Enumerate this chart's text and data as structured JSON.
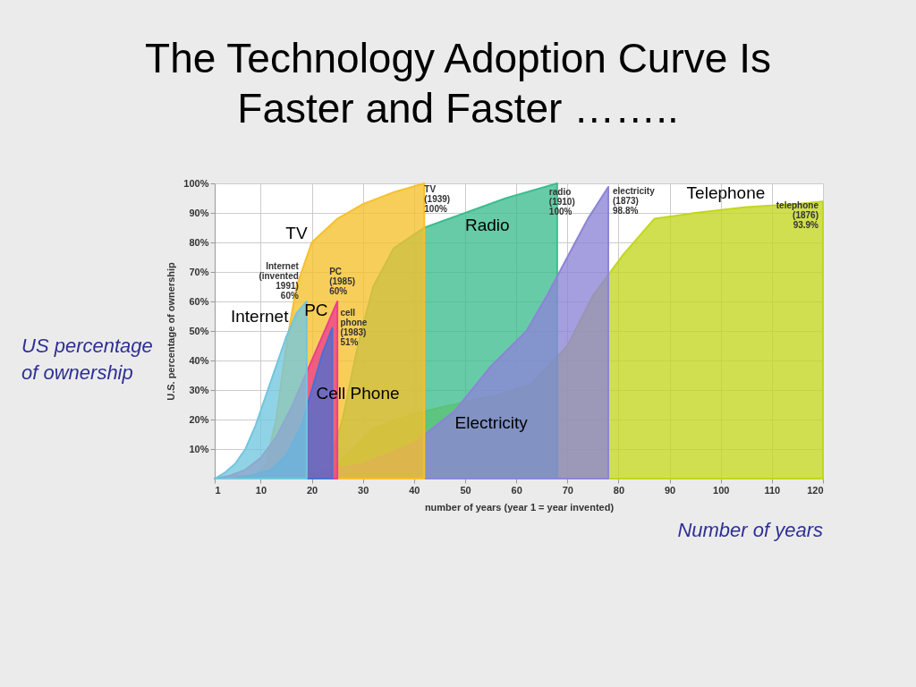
{
  "chart_data": {
    "type": "area",
    "title": "The Technology Adoption Curve Is Faster and Faster ……..",
    "xlabel": "number of years (year 1 = year invented)",
    "ylabel": "U.S. percentage of ownership",
    "xlim": [
      1,
      120
    ],
    "xticks": [
      1,
      10,
      20,
      30,
      40,
      50,
      60,
      70,
      80,
      90,
      100,
      110,
      120
    ],
    "ylim": [
      0,
      100
    ],
    "yticks": [
      {
        "value": 10,
        "label": "10%"
      },
      {
        "value": 20,
        "label": "20%"
      },
      {
        "value": 30,
        "label": "30%"
      },
      {
        "value": 40,
        "label": "40%"
      },
      {
        "value": 50,
        "label": "50%"
      },
      {
        "value": 60,
        "label": "60%"
      },
      {
        "value": 70,
        "label": "70%"
      },
      {
        "value": 80,
        "label": "80%"
      },
      {
        "value": 90,
        "label": "90%"
      },
      {
        "value": 100,
        "label": "100%"
      }
    ],
    "grid": true,
    "series": [
      {
        "name": "Telephone",
        "color": "#c3d61e",
        "x": [
          1,
          10,
          20,
          25,
          32,
          40,
          50,
          56,
          63,
          70,
          75,
          81,
          87,
          95,
          105,
          115,
          120
        ],
        "values": [
          0,
          1,
          2,
          5,
          17,
          22,
          26,
          28,
          32,
          45,
          62,
          76,
          88,
          90,
          92,
          93,
          93.9
        ]
      },
      {
        "name": "Radio",
        "color": "#3dbd8f",
        "x": [
          1,
          10,
          20,
          23,
          26,
          29,
          32,
          36,
          42,
          50,
          58,
          68
        ],
        "values": [
          0,
          0,
          1,
          3,
          20,
          45,
          65,
          78,
          85,
          90,
          95,
          100
        ]
      },
      {
        "name": "Electricity",
        "color": "#8c84d6",
        "x": [
          1,
          10,
          20,
          30,
          40,
          48,
          55,
          62,
          66,
          70,
          74,
          78
        ],
        "values": [
          0,
          1,
          2,
          5,
          12,
          23,
          38,
          50,
          62,
          75,
          88,
          98.8
        ]
      },
      {
        "name": "TV",
        "color": "#f6c02c",
        "x": [
          1,
          5,
          9,
          11,
          13,
          15,
          17,
          20,
          25,
          30,
          36,
          42
        ],
        "values": [
          0,
          1,
          1,
          5,
          20,
          45,
          65,
          80,
          88,
          93,
          97,
          100
        ]
      },
      {
        "name": "PC",
        "color": "#ec3f8c",
        "x": [
          1,
          4,
          7,
          10,
          13,
          16,
          19,
          22,
          25
        ],
        "values": [
          0,
          1,
          3,
          7,
          14,
          24,
          36,
          48,
          60
        ]
      },
      {
        "name": "Cell Phone",
        "color": "#4d6fd0",
        "x": [
          1,
          4,
          8,
          12,
          15,
          18,
          20,
          22,
          24
        ],
        "values": [
          0,
          0,
          1,
          3,
          8,
          18,
          30,
          42,
          51
        ]
      },
      {
        "name": "Internet",
        "color": "#72c6df",
        "x": [
          1,
          3,
          5,
          7,
          9,
          11,
          13,
          15,
          17,
          19
        ],
        "values": [
          0,
          2,
          5,
          10,
          18,
          28,
          38,
          48,
          56,
          60
        ]
      }
    ],
    "annotations": [
      "US percentage of ownership",
      "Number of years",
      {
        "text": "telephone (1876) 93.9%",
        "x": 120,
        "y": 93.9
      },
      {
        "text": "electricity (1873) 98.8%",
        "x": 78,
        "y": 98.8
      },
      {
        "text": "radio (1910) 100%",
        "x": 68,
        "y": 100
      },
      {
        "text": "TV (1939) 100%",
        "x": 42,
        "y": 100
      },
      {
        "text": "PC (1985) 60%",
        "x": 25,
        "y": 60
      },
      {
        "text": "cell phone (1983) 51%",
        "x": 24,
        "y": 51
      },
      {
        "text": "Internet (invented 1991) 60%",
        "x": 19,
        "y": 60
      }
    ]
  }
}
